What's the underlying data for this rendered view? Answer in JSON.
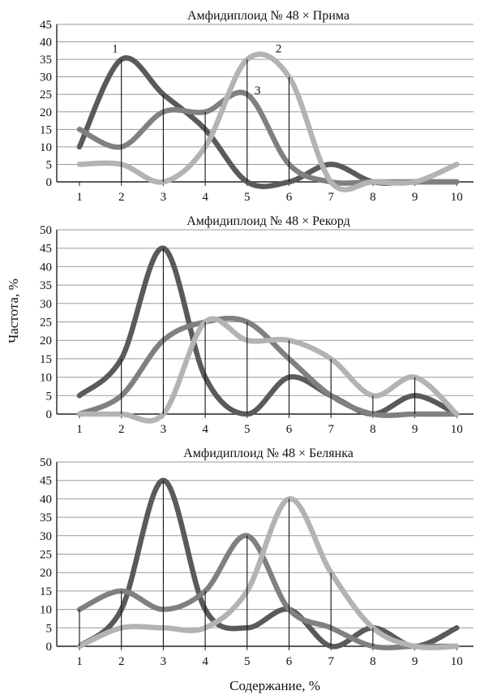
{
  "figure": {
    "ylabel": "Частота, %",
    "xlabel": "Содержание, %"
  },
  "colors": {
    "grid": "#9a9a9a",
    "axis": "#222222",
    "dropline": "#111111",
    "series": [
      "#5a5a5a",
      "#808080",
      "#b3b3b3"
    ]
  },
  "chart_data": [
    {
      "type": "line",
      "title": "Амфидиплоид № 48 × Прима",
      "x": [
        1,
        2,
        3,
        4,
        5,
        6,
        7,
        8,
        9,
        10
      ],
      "ylim": [
        0,
        45
      ],
      "yticks": [
        0,
        5,
        10,
        15,
        20,
        25,
        30,
        35,
        40,
        45
      ],
      "grid": true,
      "series": [
        {
          "name": "1",
          "values": [
            10,
            35,
            25,
            15,
            0,
            0,
            5,
            0,
            0,
            0
          ]
        },
        {
          "name": "3",
          "values": [
            15,
            10,
            20,
            20,
            25,
            5,
            0,
            0,
            0,
            0
          ]
        },
        {
          "name": "2",
          "values": [
            5,
            5,
            0,
            10,
            35,
            30,
            0,
            0,
            0,
            5
          ]
        }
      ],
      "droplines": [
        {
          "x": 2,
          "y": 35
        },
        {
          "x": 3,
          "y": 25
        },
        {
          "x": 4,
          "y": 20
        },
        {
          "x": 5,
          "y": 35
        },
        {
          "x": 6,
          "y": 30
        }
      ],
      "annotations": [
        {
          "text": "1",
          "x": 1.85,
          "y": 37
        },
        {
          "text": "2",
          "x": 5.75,
          "y": 37
        },
        {
          "text": "3",
          "x": 5.25,
          "y": 25
        }
      ]
    },
    {
      "type": "line",
      "title": "Амфидиплоид № 48 × Рекорд",
      "x": [
        1,
        2,
        3,
        4,
        5,
        6,
        7,
        8,
        9,
        10
      ],
      "ylim": [
        0,
        50
      ],
      "yticks": [
        0,
        5,
        10,
        15,
        20,
        25,
        30,
        35,
        40,
        45,
        50
      ],
      "grid": true,
      "series": [
        {
          "name": "",
          "values": [
            5,
            15,
            45,
            10,
            0,
            10,
            5,
            0,
            5,
            0
          ]
        },
        {
          "name": "",
          "values": [
            0,
            5,
            20,
            25,
            25,
            15,
            5,
            0,
            0,
            0
          ]
        },
        {
          "name": "",
          "values": [
            0,
            0,
            0,
            25,
            20,
            20,
            15,
            5,
            10,
            0
          ]
        }
      ],
      "droplines": [
        {
          "x": 2,
          "y": 15
        },
        {
          "x": 3,
          "y": 45
        },
        {
          "x": 4,
          "y": 25
        },
        {
          "x": 5,
          "y": 25
        },
        {
          "x": 6,
          "y": 20
        },
        {
          "x": 7,
          "y": 15
        },
        {
          "x": 8,
          "y": 5
        },
        {
          "x": 9,
          "y": 10
        }
      ],
      "annotations": []
    },
    {
      "type": "line",
      "title": "Амфидиплоид № 48 × Белянка",
      "x": [
        1,
        2,
        3,
        4,
        5,
        6,
        7,
        8,
        9,
        10
      ],
      "ylim": [
        0,
        50
      ],
      "yticks": [
        0,
        5,
        10,
        15,
        20,
        25,
        30,
        35,
        40,
        45,
        50
      ],
      "grid": true,
      "series": [
        {
          "name": "",
          "values": [
            0,
            10,
            45,
            10,
            5,
            10,
            0,
            5,
            0,
            5
          ]
        },
        {
          "name": "",
          "values": [
            10,
            15,
            10,
            15,
            30,
            10,
            5,
            0,
            0,
            0
          ]
        },
        {
          "name": "",
          "values": [
            0,
            5,
            5,
            5,
            15,
            40,
            20,
            5,
            0,
            0
          ]
        }
      ],
      "droplines": [
        {
          "x": 1,
          "y": 10
        },
        {
          "x": 2,
          "y": 15
        },
        {
          "x": 3,
          "y": 45
        },
        {
          "x": 4,
          "y": 15
        },
        {
          "x": 5,
          "y": 30
        },
        {
          "x": 6,
          "y": 40
        },
        {
          "x": 7,
          "y": 20
        },
        {
          "x": 8,
          "y": 5
        }
      ],
      "annotations": []
    }
  ]
}
